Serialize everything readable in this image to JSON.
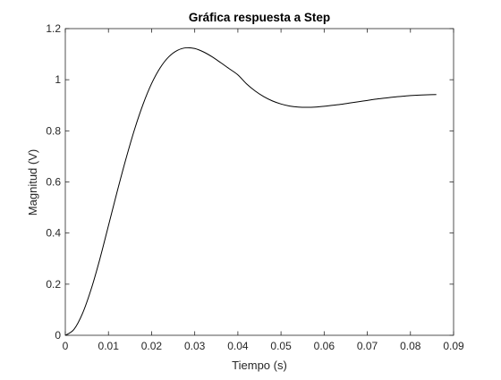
{
  "chart_data": {
    "type": "line",
    "title": "Gráfica respuesta a Step",
    "xlabel": "Tiempo (s)",
    "ylabel": "Magnitud (V)",
    "xlim": [
      0,
      0.09
    ],
    "ylim": [
      0,
      1.2
    ],
    "xticks": [
      0,
      0.01,
      0.02,
      0.03,
      0.04,
      0.05,
      0.06,
      0.07,
      0.08,
      0.09
    ],
    "xtick_labels": [
      "0",
      "0.01",
      "0.02",
      "0.03",
      "0.04",
      "0.05",
      "0.06",
      "0.07",
      "0.08",
      "0.09"
    ],
    "yticks": [
      0,
      0.2,
      0.4,
      0.6,
      0.8,
      1.0,
      1.2
    ],
    "ytick_labels": [
      "0",
      "0.2",
      "0.4",
      "0.6",
      "0.8",
      "1",
      "1.2"
    ],
    "grid": false,
    "line_color": "#000000",
    "series": [
      {
        "x": [
          0,
          0.002,
          0.004,
          0.006,
          0.008,
          0.01,
          0.012,
          0.014,
          0.016,
          0.018,
          0.02,
          0.022,
          0.024,
          0.026,
          0.028,
          0.03,
          0.032,
          0.034,
          0.036,
          0.038,
          0.04,
          0.042,
          0.044,
          0.046,
          0.048,
          0.05,
          0.052,
          0.054,
          0.056,
          0.058,
          0.06,
          0.062,
          0.064,
          0.066,
          0.068,
          0.07,
          0.072,
          0.074,
          0.076,
          0.078,
          0.08,
          0.082,
          0.084,
          0.086
        ],
        "values": [
          0,
          0.023,
          0.086,
          0.181,
          0.298,
          0.429,
          0.561,
          0.687,
          0.803,
          0.903,
          0.985,
          1.047,
          1.09,
          1.115,
          1.125,
          1.122,
          1.109,
          1.09,
          1.067,
          1.043,
          1.019,
          0.984,
          0.956,
          0.934,
          0.917,
          0.905,
          0.897,
          0.893,
          0.892,
          0.893,
          0.896,
          0.9,
          0.904,
          0.909,
          0.914,
          0.919,
          0.924,
          0.928,
          0.932,
          0.935,
          0.938,
          0.94,
          0.941,
          0.942
        ]
      }
    ]
  }
}
